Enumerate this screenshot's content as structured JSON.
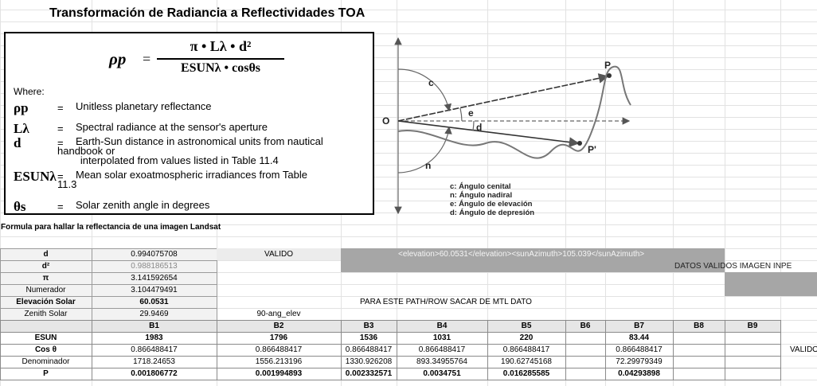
{
  "header": {
    "title": "Transformación de Radiancia a Reflectividades TOA"
  },
  "formula": {
    "lhs": "ρp",
    "eq": "=",
    "numerator": "π • Lλ • d²",
    "denominator": "ESUNλ • cosθs"
  },
  "where": "Where:",
  "definitions": [
    {
      "symbol": "ρp",
      "eq": "=",
      "text": "Unitless planetary reflectance"
    },
    {
      "symbol": "Lλ",
      "eq": "=",
      "text": "Spectral radiance at the sensor's aperture"
    },
    {
      "symbol": "d",
      "eq": "=",
      "text": "Earth-Sun distance in astronomical units from nautical\nhandbook or\n        interpolated from values listed in Table 11.4"
    },
    {
      "symbol": "ESUNλ",
      "eq": "=",
      "text": "Mean solar exoatmospheric irradiances from Table\n11.3"
    },
    {
      "symbol": "θs",
      "eq": "=",
      "text": "Solar zenith angle in degrees"
    }
  ],
  "diagram": {
    "labels": {
      "origin": "O",
      "p": "P",
      "p_prime": "P'",
      "c": "c",
      "e": "e",
      "d": "d",
      "n": "n"
    },
    "legend": [
      "c: Ángulo cenital",
      "n: Ángulo nadiral",
      "e: Ángulo de elevación",
      "d: Ángulo de depresión"
    ]
  },
  "subtitle": "Formula para hallar la reflectancia de una imagen Landsat",
  "table": {
    "rows": [
      [
        "d",
        "0.994075708",
        "VALIDO",
        null,
        "<elevation>60.0531</elevation><sunAzimuth>105.039</sunAzimuth>",
        null,
        null,
        null,
        null,
        null,
        null
      ],
      [
        "d²",
        "0.988186513",
        null,
        null,
        null,
        null,
        null,
        null,
        "DATOS VALIDOS IMAGEN INPE",
        null,
        null
      ],
      [
        "π",
        "3.141592654",
        null,
        null,
        null,
        null,
        null,
        null,
        null,
        null,
        null
      ],
      [
        "Numerador",
        "3.104479491",
        null,
        null,
        null,
        null,
        null,
        null,
        null,
        null,
        null
      ],
      [
        "Elevación Solar",
        "60.0531",
        null,
        "PARA ESTE PATH/ROW SACAR DE MTL DATO",
        null,
        null,
        null,
        null,
        null,
        null,
        null
      ],
      [
        "Zenith Solar",
        "29.9469",
        "90-ang_elev",
        null,
        null,
        null,
        null,
        null,
        null,
        null,
        null
      ],
      [
        null,
        "B1",
        "B2",
        "B3",
        "B4",
        "B5",
        "B6",
        "B7",
        "B8",
        "B9",
        null
      ],
      [
        "ESUN",
        "1983",
        "1796",
        "1536",
        "1031",
        "220",
        null,
        "83.44",
        null,
        null,
        null
      ],
      [
        "Cos θ",
        "0.866488417",
        "0.866488417",
        "0.866488417",
        "0.866488417",
        "0.866488417",
        null,
        "0.866488417",
        null,
        null,
        "VALIDO"
      ],
      [
        "Denominador",
        "1718.24653",
        "1556.213196",
        "1330.926208",
        "893.34955764",
        "190.62745168",
        null,
        "72.29979349",
        null,
        null,
        null
      ],
      [
        "P",
        "0.001806772",
        "0.001994893",
        "0.002332571",
        "0.0034751",
        "0.016285585",
        null,
        "0.04293898",
        null,
        null,
        null
      ]
    ]
  }
}
